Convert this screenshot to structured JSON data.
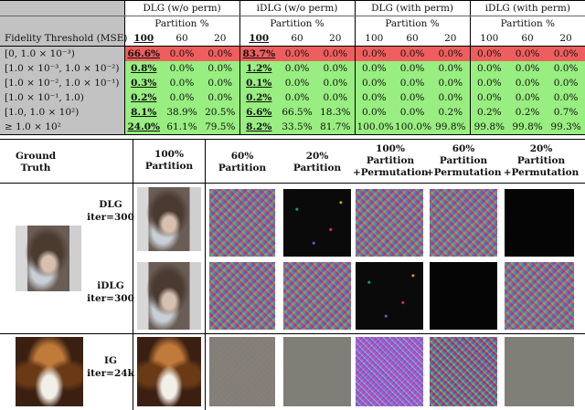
{
  "table": {
    "corner_label": "Fidelity Threshold (MSE)",
    "groups": [
      "DLG (w/o perm)",
      "iDLG (w/o perm)",
      "DLG (with perm)",
      "iDLG (with perm)"
    ],
    "sub_label": "Partition %",
    "partitions": [
      "100",
      "60",
      "20"
    ],
    "rows": [
      {
        "label": "[0, 1.0 × 10⁻³)",
        "cells": [
          "66.6%",
          "0.0%",
          "0.0%",
          "83.7%",
          "0.0%",
          "0.0%",
          "0.0%",
          "0.0%",
          "0.0%",
          "0.0%",
          "0.0%",
          "0.0%"
        ],
        "color": "red"
      },
      {
        "label": "[1.0 × 10⁻³, 1.0 × 10⁻²)",
        "cells": [
          "0.8%",
          "0.0%",
          "0.0%",
          "1.2%",
          "0.0%",
          "0.0%",
          "0.0%",
          "0.0%",
          "0.0%",
          "0.0%",
          "0.0%",
          "0.0%"
        ],
        "color": "green"
      },
      {
        "label": "[1.0 × 10⁻², 1.0 × 10⁻¹)",
        "cells": [
          "0.3%",
          "0.0%",
          "0.0%",
          "0.1%",
          "0.0%",
          "0.0%",
          "0.0%",
          "0.0%",
          "0.0%",
          "0.0%",
          "0.0%",
          "0.0%"
        ],
        "color": "green"
      },
      {
        "label": "[1.0 × 10⁻¹, 1.0)",
        "cells": [
          "0.2%",
          "0.0%",
          "0.0%",
          "0.2%",
          "0.0%",
          "0.0%",
          "0.0%",
          "0.0%",
          "0.0%",
          "0.0%",
          "0.0%",
          "0.0%"
        ],
        "color": "green"
      },
      {
        "label": "[1.0, 1.0 × 10²)",
        "cells": [
          "8.1%",
          "38.9%",
          "20.5%",
          "6.6%",
          "66.5%",
          "18.3%",
          "0.0%",
          "0.0%",
          "0.2%",
          "0.2%",
          "0.2%",
          "0.7%"
        ],
        "color": "green"
      },
      {
        "label": "≥ 1.0 × 10²",
        "cells": [
          "24.0%",
          "61.1%",
          "79.5%",
          "8.2%",
          "33.5%",
          "81.7%",
          "100.0%",
          "100.0%",
          "99.8%",
          "99.8%",
          "99.8%",
          "99.3%"
        ],
        "color": "green"
      }
    ]
  },
  "grid": {
    "headers": {
      "ground_truth_1": "Ground",
      "ground_truth_2": "Truth",
      "h100_1": "100%",
      "h100_2": "Partition",
      "h60_1": "60%",
      "h60_2": "Partition",
      "h20_1": "20%",
      "h20_2": "Partition",
      "h100p_1": "100%",
      "h100p_2": "Partition",
      "h100p_3": "+Permutation",
      "h60p_1": "60%",
      "h60p_2": "Partition",
      "h60p_3": "+Permutation",
      "h20p_1": "20%",
      "h20p_2": "Partition",
      "h20p_3": "+Permutation"
    },
    "rows": [
      {
        "method": "DLG",
        "iter": "iter=300"
      },
      {
        "method": "iDLG",
        "iter": "iter=300"
      },
      {
        "method": "IG",
        "iter": "iter=24k"
      }
    ]
  }
}
